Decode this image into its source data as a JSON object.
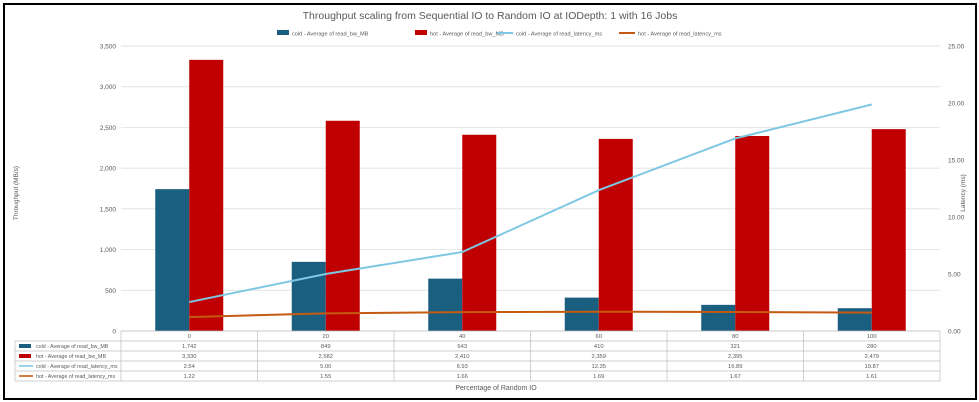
{
  "colors": {
    "cold_bw": "#1a5f80",
    "hot_bw": "#c00000",
    "cold_latency": "#7ec8e3",
    "hot_latency": "#c55a11",
    "grid": "#d9d9d9",
    "axis_text": "#595959"
  },
  "chart_data": {
    "type": "bar",
    "title": "Throughput scaling from Sequential IO to Random IO at IODepth: 1 with 16 Jobs",
    "xlabel": "Percentage of Random IO",
    "ylabel": "Throughput (MB/s)",
    "y2label": "Latency (ms)",
    "categories": [
      "0",
      "20",
      "40",
      "60",
      "80",
      "100"
    ],
    "ylim": [
      0,
      3500
    ],
    "y_ticks": [
      "0",
      "500",
      "1,000",
      "1,500",
      "2,000",
      "2,500",
      "3,000",
      "3,500"
    ],
    "y2lim": [
      0,
      25
    ],
    "y2_ticks": [
      "0.00",
      "5.00",
      "10.00",
      "15.00",
      "20.00",
      "25.00"
    ],
    "grid": true,
    "legend_position": "top",
    "series": [
      {
        "name": "cold - Average of read_bw_MB",
        "kind": "bar",
        "axis": "left",
        "color": "#1a5f80",
        "values": [
          1742,
          849,
          643,
          410,
          321,
          280
        ],
        "labels": [
          "1,742",
          "849",
          "643",
          "410",
          "321",
          "280"
        ]
      },
      {
        "name": "hot - Average of read_bw_MB",
        "kind": "bar",
        "axis": "left",
        "color": "#c00000",
        "values": [
          3330,
          2582,
          2410,
          2359,
          2395,
          2479
        ],
        "labels": [
          "3,330",
          "2,582",
          "2,410",
          "2,359",
          "2,395",
          "2,479"
        ]
      },
      {
        "name": "cold - Average of read_latency_ms",
        "kind": "line",
        "axis": "right",
        "color": "#7ec8e3",
        "values": [
          2.54,
          5.0,
          6.93,
          12.35,
          16.89,
          19.87
        ],
        "labels": [
          "2.54",
          "5.00",
          "6.93",
          "12.35",
          "16.89",
          "19.87"
        ]
      },
      {
        "name": "hot - Average of read_latency_ms",
        "kind": "line",
        "axis": "right",
        "color": "#c55a11",
        "values": [
          1.22,
          1.55,
          1.66,
          1.69,
          1.67,
          1.61
        ],
        "labels": [
          "1.22",
          "1.55",
          "1.66",
          "1.69",
          "1.67",
          "1.61"
        ]
      }
    ]
  }
}
